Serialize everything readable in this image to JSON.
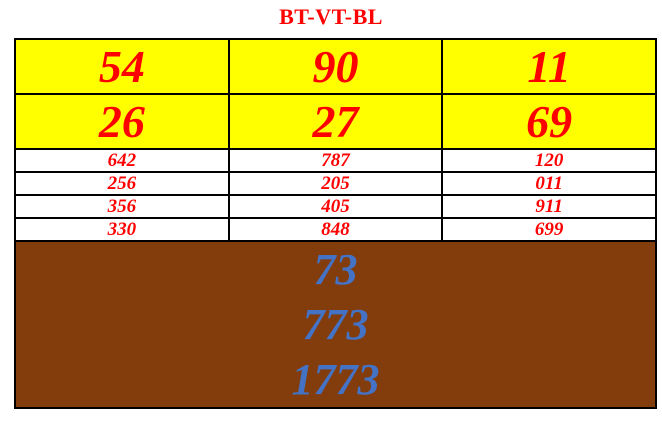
{
  "title": "BT-VT-BL",
  "colors": {
    "title_red": "#ff0000",
    "number_red": "#ff0000",
    "yellow_bg": "#ffff00",
    "brown_bg": "#833c0c",
    "blue_text": "#4472c4",
    "border_black": "#000000"
  },
  "table": {
    "big_rows": [
      {
        "cells": [
          "54",
          "90",
          "11"
        ]
      },
      {
        "cells": [
          "26",
          "27",
          "69"
        ]
      }
    ],
    "small_rows": [
      {
        "cells": [
          "642",
          "787",
          "120"
        ]
      },
      {
        "cells": [
          "256",
          "205",
          "011"
        ]
      },
      {
        "cells": [
          "356",
          "405",
          "911"
        ]
      },
      {
        "cells": [
          "330",
          "848",
          "699"
        ]
      }
    ],
    "footer_lines": [
      "73",
      "773",
      "1773"
    ]
  }
}
